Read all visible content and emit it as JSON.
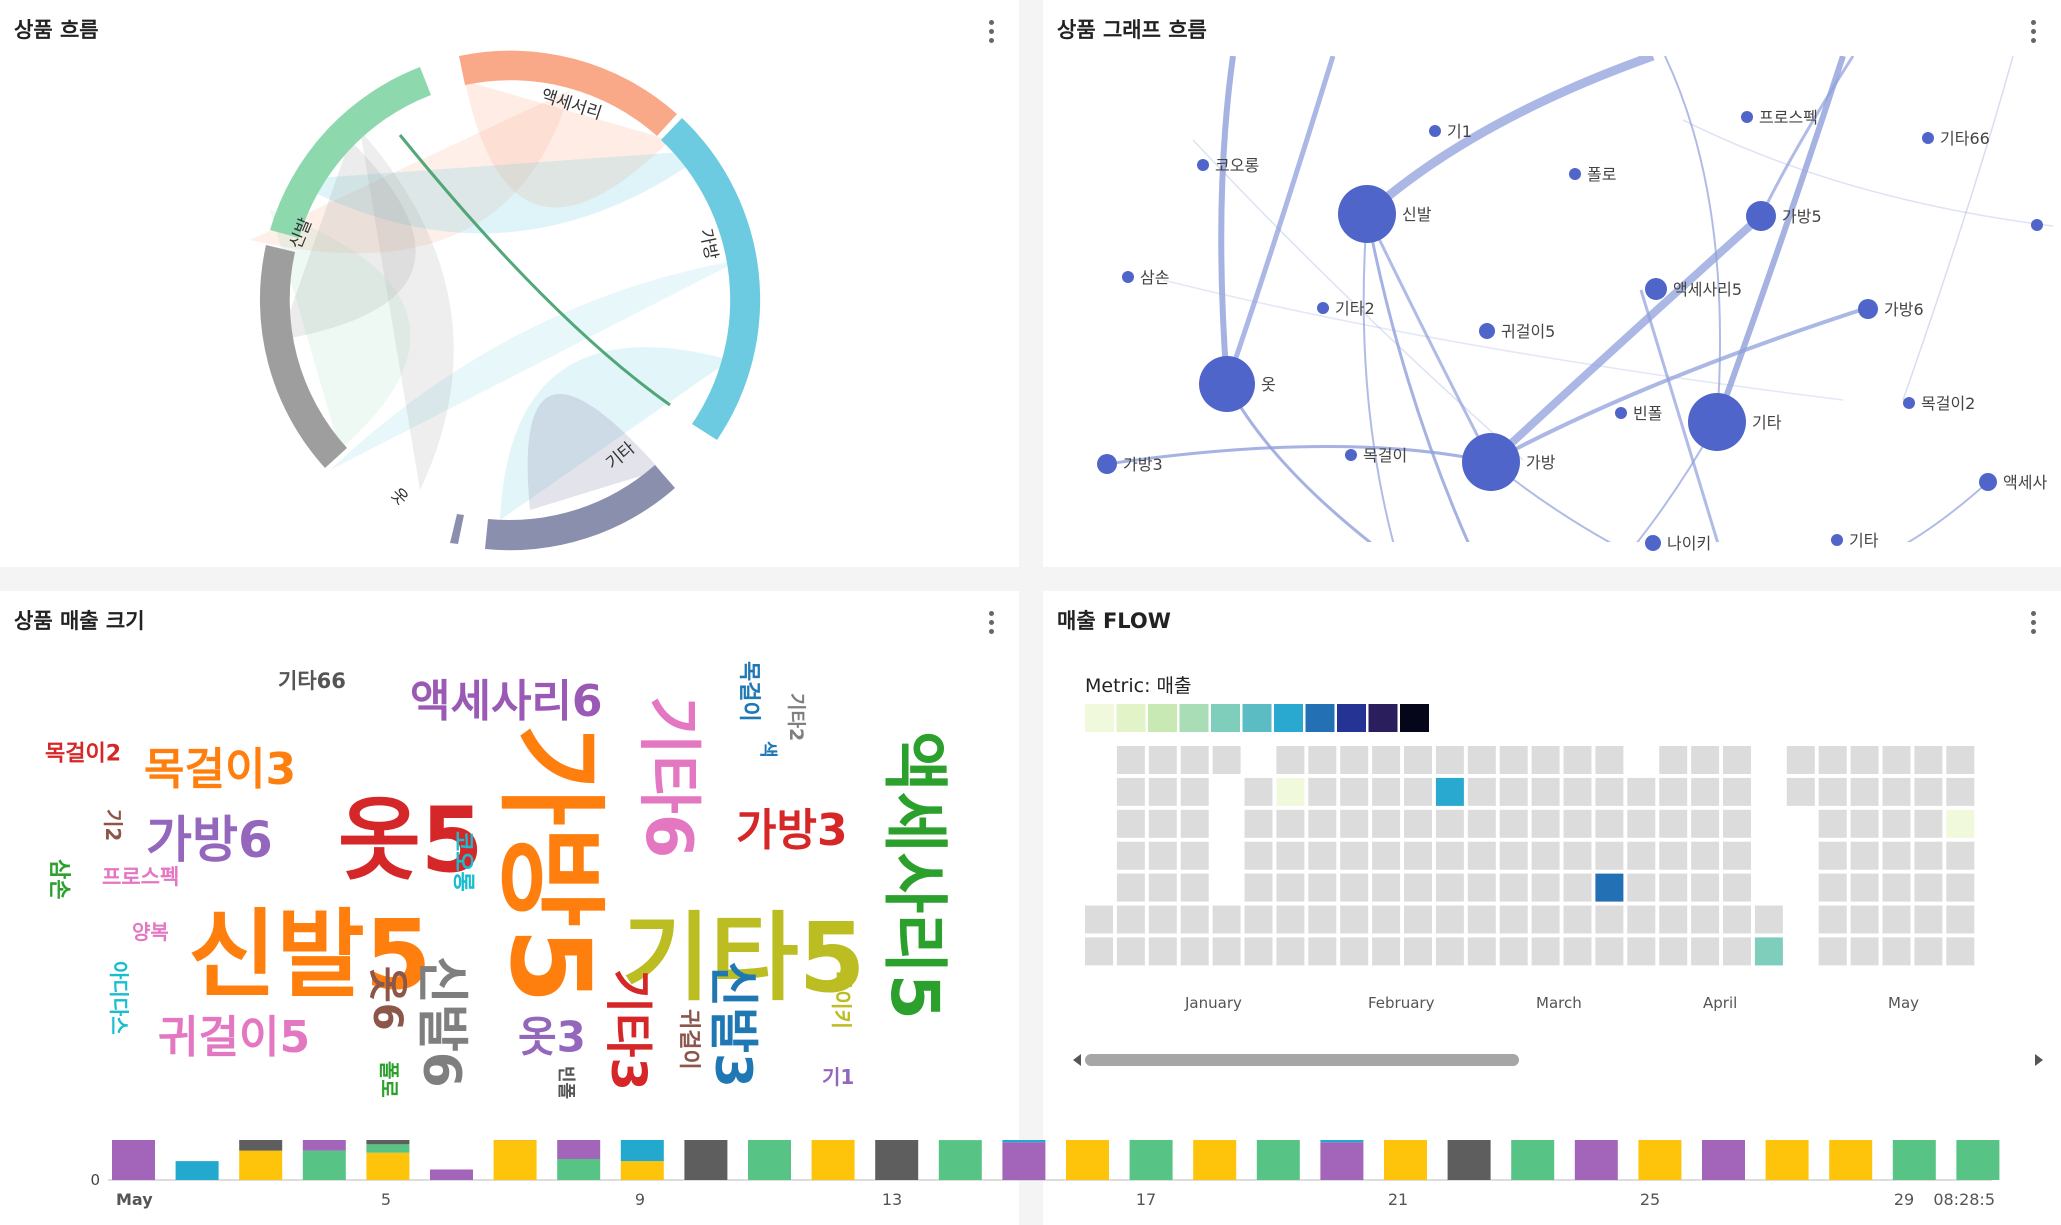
{
  "panels": {
    "chord": {
      "title": "상품 흐름"
    },
    "graph": {
      "title": "상품 그래프 흐름"
    },
    "cloud": {
      "title": "상품 매출 크기"
    },
    "flow": {
      "title": "매출 FLOW"
    }
  },
  "chord": {
    "arcs": [
      {
        "label": "액세서리",
        "color": "#f9a987"
      },
      {
        "label": "가방",
        "color": "#6ccbe0"
      },
      {
        "label": "기타",
        "color": "#8a8fae"
      },
      {
        "label": "옷",
        "color": "#9e9e9e"
      },
      {
        "label": "신발",
        "color": "#8ed8ad"
      }
    ]
  },
  "graph": {
    "nodes": [
      {
        "label": "기1"
      },
      {
        "label": "프로스펙"
      },
      {
        "label": "기타66"
      },
      {
        "label": "코오롱"
      },
      {
        "label": "폴로"
      },
      {
        "label": "신발"
      },
      {
        "label": "가방5"
      },
      {
        "label": "삼손"
      },
      {
        "label": "액세사리5"
      },
      {
        "label": "기타2"
      },
      {
        "label": "귀걸이5"
      },
      {
        "label": "가방6"
      },
      {
        "label": "옷"
      },
      {
        "label": "빈폴"
      },
      {
        "label": "기타"
      },
      {
        "label": "목걸이2"
      },
      {
        "label": "가방3"
      },
      {
        "label": "목걸이"
      },
      {
        "label": "가방"
      },
      {
        "label": "액세사"
      },
      {
        "label": "기타"
      },
      {
        "label": "나이키"
      }
    ],
    "node_color": "#5065c9",
    "link_color": "#8f9fdb"
  },
  "cloud": {
    "words": [
      {
        "text": "기타66",
        "color": "#555555"
      },
      {
        "text": "액세사리6",
        "color": "#9b59b6"
      },
      {
        "text": "목걸이2",
        "color": "#d62728"
      },
      {
        "text": "목걸이3",
        "color": "#ff7f0e"
      },
      {
        "text": "옷5",
        "color": "#d62728"
      },
      {
        "text": "가방5",
        "color": "#ff7f0e"
      },
      {
        "text": "기타6",
        "color": "#e377c2"
      },
      {
        "text": "목걸이",
        "color": "#1f77b4"
      },
      {
        "text": "색",
        "color": "#1f77b4"
      },
      {
        "text": "기타2",
        "color": "#7f7f7f"
      },
      {
        "text": "액세사리5",
        "color": "#2ca02c"
      },
      {
        "text": "기2",
        "color": "#8c564b"
      },
      {
        "text": "가방6",
        "color": "#9467bd"
      },
      {
        "text": "가방3",
        "color": "#d62728"
      },
      {
        "text": "코오롱",
        "color": "#17becf"
      },
      {
        "text": "삼손",
        "color": "#2ca02c"
      },
      {
        "text": "프로스펙",
        "color": "#e377c2"
      },
      {
        "text": "신발5",
        "color": "#ff7f0e"
      },
      {
        "text": "기타5",
        "color": "#bcbd22"
      },
      {
        "text": "양복",
        "color": "#e377c2"
      },
      {
        "text": "아디다스",
        "color": "#17becf"
      },
      {
        "text": "귀걸이5",
        "color": "#e377c2"
      },
      {
        "text": "옷6",
        "color": "#8c564b"
      },
      {
        "text": "신발6",
        "color": "#7f7f7f"
      },
      {
        "text": "옷3",
        "color": "#9467bd"
      },
      {
        "text": "기타3",
        "color": "#d62728"
      },
      {
        "text": "귀걸이",
        "color": "#8c564b"
      },
      {
        "text": "신발3",
        "color": "#1f77b4"
      },
      {
        "text": "나이키",
        "color": "#bcbd22"
      },
      {
        "text": "기1",
        "color": "#9467bd"
      },
      {
        "text": "폴로",
        "color": "#2ca02c"
      },
      {
        "text": "빈폴",
        "color": "#555555"
      }
    ]
  },
  "timeline": {
    "y_zero": "0",
    "ticks": [
      "May",
      "5",
      "9",
      "13",
      "17",
      "21",
      "25",
      "29",
      "08:28:5"
    ],
    "colors": {
      "purple": "#a365b9",
      "teal": "#22a9cd",
      "yellow": "#fec40c",
      "green": "#57c486",
      "gray": "#5e5e5e"
    }
  },
  "flow": {
    "metric_label": "Metric: 매출",
    "scale_colors": [
      "#f0f9dc",
      "#e2f3c7",
      "#c8e9b4",
      "#a8ddb5",
      "#7fcdbb",
      "#5bbcc4",
      "#29a9d0",
      "#2370b4",
      "#253494",
      "#2a1e5c",
      "#06061a"
    ],
    "months": [
      "January",
      "February",
      "March",
      "April",
      "May"
    ],
    "cell_color": "#dcdcdc",
    "highlights": [
      {
        "week": 6,
        "day": 1,
        "color": "#f0f9dc"
      },
      {
        "week": 11,
        "day": 1,
        "color": "#29a9d0"
      },
      {
        "week": 16,
        "day": 4,
        "color": "#2370b4"
      },
      {
        "week": 21,
        "day": 6,
        "color": "#7fcdbb"
      },
      {
        "week": 27,
        "day": 2,
        "color": "#f0f9dc"
      }
    ]
  }
}
